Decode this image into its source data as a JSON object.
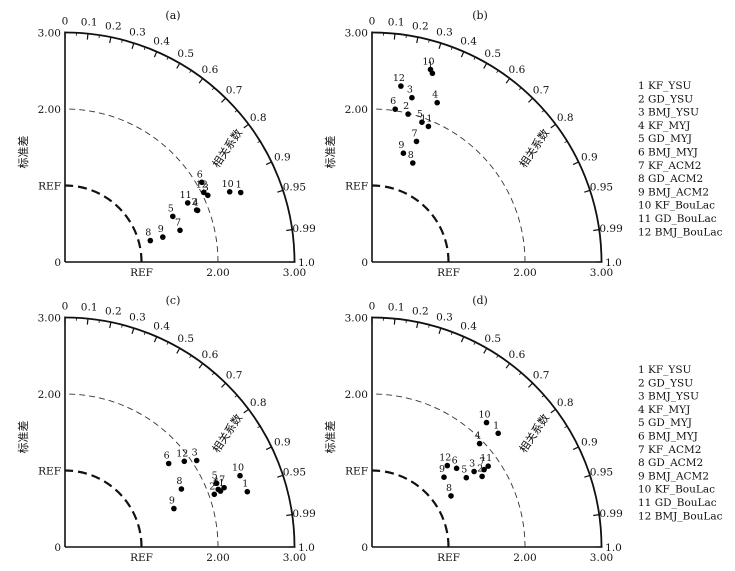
{
  "chart_data": [
    {
      "type": "scatter",
      "panel_label": "(a)",
      "corr_label": "相关系数",
      "std_label": "标准差",
      "ref_label": "REF",
      "radial_ticks": [
        "2.00",
        "3.00"
      ],
      "radial_tick_values": [
        2.0,
        3.0
      ],
      "y_ticks": [
        "3.00",
        "2.00"
      ],
      "y_tick_values": [
        3.0,
        2.0
      ],
      "corr_ticks": [
        "0",
        "0.1",
        "0.2",
        "0.3",
        "0.4",
        "0.5",
        "0.6",
        "0.7",
        "0.8",
        "0.9",
        "0.95",
        "0.99",
        "1.0"
      ],
      "corr_tick_values": [
        0,
        0.1,
        0.2,
        0.3,
        0.4,
        0.5,
        0.6,
        0.7,
        0.8,
        0.9,
        0.95,
        0.99,
        1.0
      ],
      "std_range": [
        0,
        3.0
      ],
      "ref_std": 1.0,
      "points": [
        {
          "label": "1",
          "std": 2.47,
          "corr": 0.93
        },
        {
          "label": "2",
          "std": 1.85,
          "corr": 0.93
        },
        {
          "label": "3",
          "std": 2.06,
          "corr": 0.906
        },
        {
          "label": "4",
          "std": 1.86,
          "corr": 0.932
        },
        {
          "label": "5",
          "std": 1.53,
          "corr": 0.921
        },
        {
          "label": "6",
          "std": 2.07,
          "corr": 0.864
        },
        {
          "label": "7",
          "std": 1.56,
          "corr": 0.964
        },
        {
          "label": "8",
          "std": 1.15,
          "corr": 0.97
        },
        {
          "label": "9",
          "std": 1.32,
          "corr": 0.969
        },
        {
          "label": "10",
          "std": 2.34,
          "corr": 0.92
        },
        {
          "label": "11",
          "std": 1.78,
          "corr": 0.901
        },
        {
          "label": "12",
          "std": 2.03,
          "corr": 0.894
        }
      ]
    },
    {
      "type": "scatter",
      "panel_label": "(b)",
      "corr_label": "相关系数",
      "std_label": "标准差",
      "ref_label": "REF",
      "radial_ticks": [
        "2.00",
        "3.00"
      ],
      "radial_tick_values": [
        2.0,
        3.0
      ],
      "y_ticks": [
        "3.00",
        "2.00"
      ],
      "y_tick_values": [
        3.0,
        2.0
      ],
      "corr_ticks": [
        "0",
        "0.1",
        "0.2",
        "0.3",
        "0.4",
        "0.5",
        "0.6",
        "0.7",
        "0.8",
        "0.9",
        "0.95",
        "0.99",
        "1.0"
      ],
      "corr_tick_values": [
        0,
        0.1,
        0.2,
        0.3,
        0.4,
        0.5,
        0.6,
        0.7,
        0.8,
        0.9,
        0.95,
        0.99,
        1.0
      ],
      "std_range": [
        0,
        3.0
      ],
      "ref_std": 1.0,
      "points": [
        {
          "label": "1",
          "std": 2.59,
          "corr": 0.305
        },
        {
          "label": "2",
          "std": 1.99,
          "corr": 0.237
        },
        {
          "label": "3",
          "std": 2.21,
          "corr": 0.236
        },
        {
          "label": "4",
          "std": 2.25,
          "corr": 0.379
        },
        {
          "label": "5",
          "std": 1.94,
          "corr": 0.336
        },
        {
          "label": "6",
          "std": 2.02,
          "corr": 0.15
        },
        {
          "label": "7",
          "std": 1.68,
          "corr": 0.346
        },
        {
          "label": "8",
          "std": 1.4,
          "corr": 0.381
        },
        {
          "label": "9",
          "std": 1.48,
          "corr": 0.277
        },
        {
          "label": "10",
          "std": 2.63,
          "corr": 0.291
        },
        {
          "label": "11",
          "std": 1.92,
          "corr": 0.384
        },
        {
          "label": "12",
          "std": 2.33,
          "corr": 0.162
        }
      ]
    },
    {
      "type": "scatter",
      "panel_label": "(c)",
      "corr_label": "相关系数",
      "std_label": "标准差",
      "ref_label": "REF",
      "radial_ticks": [
        "2.00",
        "3.00"
      ],
      "radial_tick_values": [
        2.0,
        3.0
      ],
      "y_ticks": [
        "3.00",
        "2.00"
      ],
      "y_tick_values": [
        3.0,
        2.0
      ],
      "corr_ticks": [
        "0",
        "0.1",
        "0.2",
        "0.3",
        "0.4",
        "0.5",
        "0.6",
        "0.7",
        "0.8",
        "0.9",
        "0.95",
        "0.99",
        "1.0"
      ],
      "corr_tick_values": [
        0,
        0.1,
        0.2,
        0.3,
        0.4,
        0.5,
        0.6,
        0.7,
        0.8,
        0.9,
        0.95,
        0.99,
        1.0
      ],
      "std_range": [
        0,
        3.0
      ],
      "ref_std": 1.0,
      "points": [
        {
          "label": "1",
          "std": 2.49,
          "corr": 0.957
        },
        {
          "label": "2",
          "std": 2.07,
          "corr": 0.943
        },
        {
          "label": "3",
          "std": 2.06,
          "corr": 0.836
        },
        {
          "label": "4",
          "std": 2.14,
          "corr": 0.936
        },
        {
          "label": "5",
          "std": 2.15,
          "corr": 0.922
        },
        {
          "label": "6",
          "std": 1.74,
          "corr": 0.779
        },
        {
          "label": "7",
          "std": 2.22,
          "corr": 0.937
        },
        {
          "label": "8",
          "std": 1.7,
          "corr": 0.895
        },
        {
          "label": "9",
          "std": 1.51,
          "corr": 0.943
        },
        {
          "label": "10",
          "std": 2.47,
          "corr": 0.926
        },
        {
          "label": "11",
          "std": 2.16,
          "corr": 0.941
        },
        {
          "label": "12",
          "std": 1.92,
          "corr": 0.812
        }
      ]
    },
    {
      "type": "scatter",
      "panel_label": "(d)",
      "corr_label": "相关系数",
      "std_label": "标准差",
      "ref_label": "REF",
      "radial_ticks": [
        "2.00",
        "3.00"
      ],
      "radial_tick_values": [
        2.0,
        3.0
      ],
      "y_ticks": [
        "3.00",
        "2.00"
      ],
      "y_tick_values": [
        3.0,
        2.0
      ],
      "corr_ticks": [
        "0",
        "0.1",
        "0.2",
        "0.3",
        "0.4",
        "0.5",
        "0.6",
        "0.7",
        "0.8",
        "0.9",
        "0.95",
        "0.99",
        "1.0"
      ],
      "corr_tick_values": [
        0,
        0.1,
        0.2,
        0.3,
        0.4,
        0.5,
        0.6,
        0.7,
        0.8,
        0.9,
        0.95,
        0.99,
        1.0
      ],
      "std_range": [
        0,
        3.0
      ],
      "ref_std": 1.0,
      "points": [
        {
          "label": "1",
          "std": 2.22,
          "corr": 0.743
        },
        {
          "label": "2",
          "std": 1.71,
          "corr": 0.842
        },
        {
          "label": "3",
          "std": 1.66,
          "corr": 0.804
        },
        {
          "label": "4",
          "std": 1.95,
          "corr": 0.721
        },
        {
          "label": "5",
          "std": 1.53,
          "corr": 0.806
        },
        {
          "label": "6",
          "std": 1.51,
          "corr": 0.732
        },
        {
          "label": "7",
          "std": 1.78,
          "corr": 0.823
        },
        {
          "label": "8",
          "std": 1.23,
          "corr": 0.84
        },
        {
          "label": "9",
          "std": 1.31,
          "corr": 0.718
        },
        {
          "label": "10",
          "std": 2.21,
          "corr": 0.677
        },
        {
          "label": "11",
          "std": 1.85,
          "corr": 0.821
        },
        {
          "label": "12",
          "std": 1.45,
          "corr": 0.679
        }
      ]
    }
  ],
  "legend": {
    "items": [
      "1  KF_YSU",
      "2  GD_YSU",
      "3  BMJ_YSU",
      "4  KF_MYJ",
      "5  GD_MYJ",
      "6  BMJ_MYJ",
      "7  KF_ACM2",
      "8  GD_ACM2",
      "9  BMJ_ACM2",
      "10  KF_BouLac",
      "11  GD_BouLac",
      "12  BMJ_BouLac"
    ]
  }
}
